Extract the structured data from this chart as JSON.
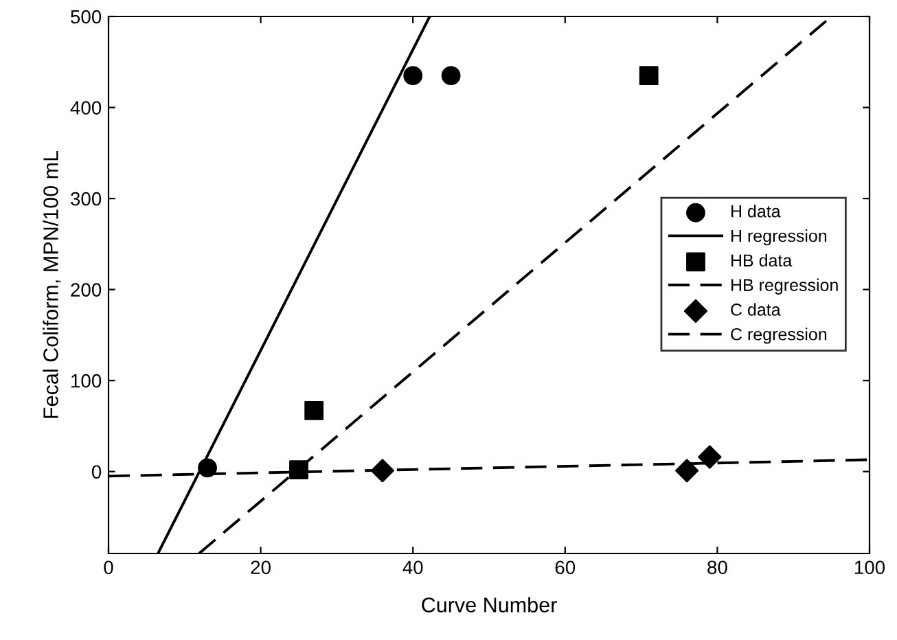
{
  "chart_data": {
    "type": "scatter",
    "xlabel": "Curve Number",
    "ylabel": "Fecal Coliform, MPN/100 mL",
    "xlim": [
      0,
      100
    ],
    "ylim": [
      -90,
      500
    ],
    "xticks": [
      0,
      20,
      40,
      60,
      80,
      100
    ],
    "yticks": [
      0,
      100,
      200,
      300,
      400,
      500
    ],
    "grid": false,
    "legend": "right",
    "series": [
      {
        "name": "H data",
        "marker": "circle",
        "color": "#000000",
        "x": [
          13,
          40,
          45
        ],
        "values": [
          4,
          435,
          435
        ]
      },
      {
        "name": "H regression",
        "type": "line",
        "line_style": "solid",
        "marker": "none",
        "color": "#000000",
        "x": [
          6.5,
          42.2
        ],
        "values": [
          -90,
          500
        ]
      },
      {
        "name": "HB data",
        "marker": "square",
        "color": "#000000",
        "x": [
          25,
          27,
          71
        ],
        "values": [
          2,
          67,
          435
        ]
      },
      {
        "name": "HB regression",
        "type": "line",
        "line_style": "dashed",
        "marker": "none",
        "color": "#000000",
        "x": [
          11.9,
          95
        ],
        "values": [
          -90,
          500
        ]
      },
      {
        "name": "C data",
        "marker": "diamond",
        "color": "#000000",
        "x": [
          36,
          76,
          79
        ],
        "values": [
          1,
          1,
          16
        ]
      },
      {
        "name": "C regression",
        "type": "line",
        "line_style": "dashed",
        "marker": "none",
        "color": "#000000",
        "x": [
          0,
          100
        ],
        "values": [
          -5,
          13
        ]
      }
    ]
  }
}
